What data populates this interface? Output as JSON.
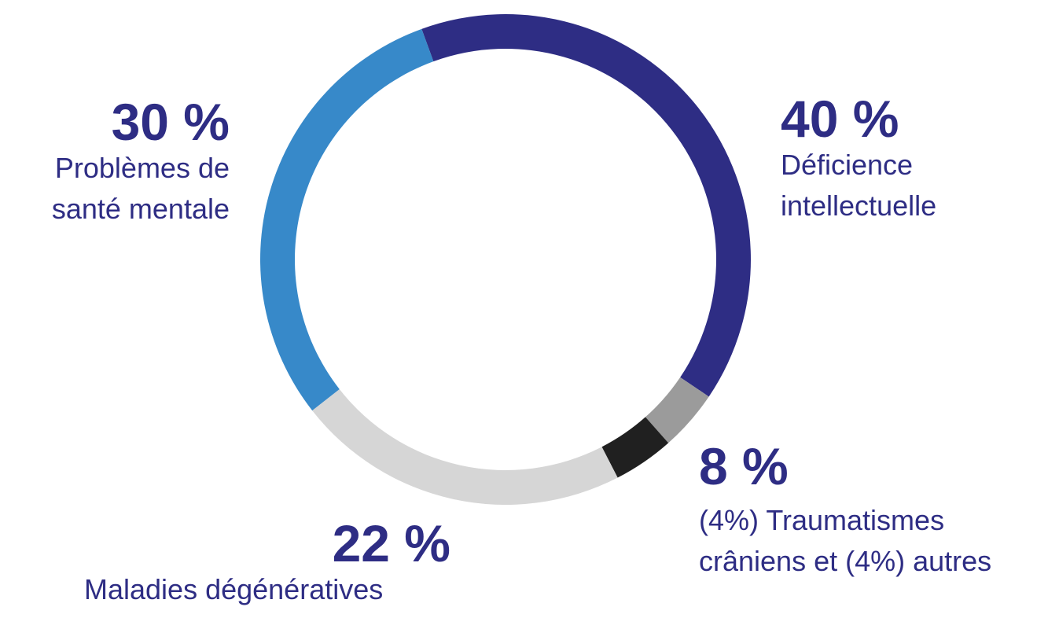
{
  "chart_data": {
    "type": "pie",
    "variant": "donut",
    "slices": [
      {
        "value": 40,
        "percent_label": "40 %",
        "label_lines": [
          "Déficience",
          "intellectuelle"
        ],
        "color": "#2e2d84"
      },
      {
        "value": 4,
        "percent_label": "",
        "label_lines": [],
        "color": "#9b9b9b"
      },
      {
        "value": 4,
        "percent_label": "",
        "label_lines": [],
        "color": "#202020"
      },
      {
        "value": 22,
        "percent_label": "22 %",
        "label_lines": [
          "Maladies dégénératives"
        ],
        "color": "#d6d6d6"
      },
      {
        "value": 30,
        "percent_label": "30 %",
        "label_lines": [
          "Problèmes de",
          "santé mentale"
        ],
        "color": "#3789c9"
      }
    ],
    "group_label": {
      "percent_label": "8 %",
      "label_lines": [
        "(4%) Traumatismes",
        "crâniens et (4%) autres"
      ]
    },
    "start_angle_deg": -20,
    "direction": "clockwise"
  }
}
